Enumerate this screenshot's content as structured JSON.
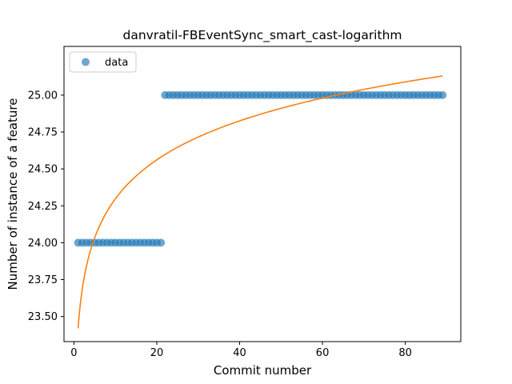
{
  "chart_data": {
    "type": "scatter",
    "title": "danvratil-FBEventSync_smart_cast-logarithm",
    "xlabel": "Commit number",
    "ylabel": "Number of instance of a feature",
    "xlim": [
      -2.4,
      93.4
    ],
    "ylim": [
      23.33,
      25.33
    ],
    "xticks": [
      0,
      20,
      40,
      60,
      80
    ],
    "xtick_labels": [
      "0",
      "20",
      "40",
      "60",
      "80"
    ],
    "yticks": [
      23.5,
      23.75,
      24.0,
      24.25,
      24.5,
      24.75,
      25.0
    ],
    "ytick_labels": [
      "23.50",
      "23.75",
      "24.00",
      "24.25",
      "24.50",
      "24.75",
      "25.00"
    ],
    "grid": false,
    "legend_position": "top-left",
    "series": [
      {
        "name": "data",
        "kind": "points",
        "color": "#1f77b4",
        "segments": [
          {
            "x_start": 1,
            "x_end": 21,
            "y": 24.0
          },
          {
            "x_start": 22,
            "x_end": 89,
            "y": 25.0
          }
        ]
      },
      {
        "kind": "line",
        "color": "#ff7f0e",
        "fit": "logarithmic",
        "x_range": [
          1,
          89
        ],
        "y_at_start": 23.42,
        "y_at_end": 25.13
      }
    ]
  }
}
